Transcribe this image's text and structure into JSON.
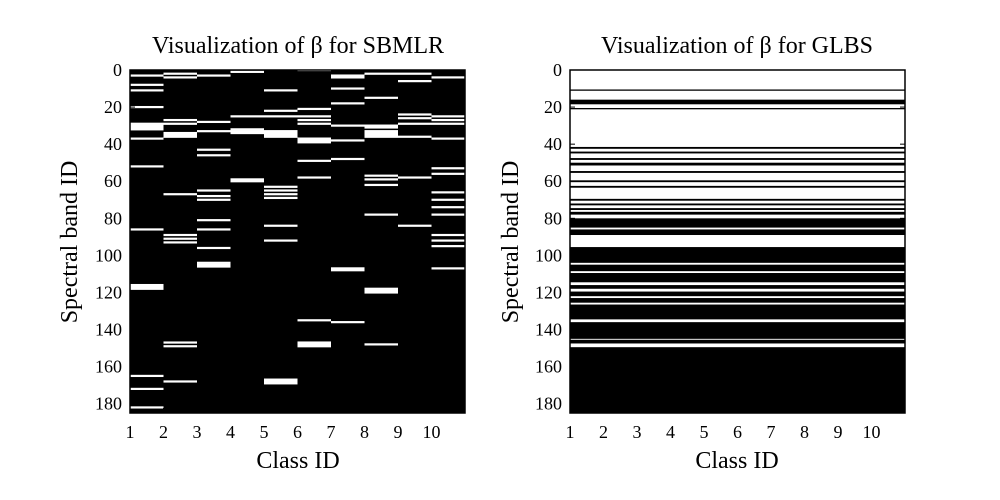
{
  "chart_data": [
    {
      "type": "heatmap",
      "title": "Visualization of β for SBMLR",
      "xlabel": "Class ID",
      "ylabel": "Spectral band ID",
      "x_ticks": [
        "1",
        "2",
        "3",
        "4",
        "5",
        "6",
        "7",
        "8",
        "9",
        "10"
      ],
      "y_ticks": [
        "0",
        "20",
        "40",
        "60",
        "80",
        "100",
        "120",
        "140",
        "160",
        "180"
      ],
      "xlim": [
        1,
        11
      ],
      "ylim": [
        185,
        0
      ],
      "background": "#000000",
      "mark_color": "#ffffff",
      "note_values": "white band = selected (non-zero beta)",
      "columns": [
        {
          "class": 1,
          "selected_bands": [
            3,
            8,
            11,
            20,
            29,
            30,
            31,
            32,
            37,
            52,
            86,
            116,
            117,
            118,
            165,
            172,
            182
          ]
        },
        {
          "class": 2,
          "selected_bands": [
            2,
            4,
            27,
            29,
            34,
            35,
            36,
            67,
            89,
            91,
            93,
            147,
            149,
            168
          ]
        },
        {
          "class": 3,
          "selected_bands": [
            3,
            28,
            33,
            43,
            46,
            65,
            68,
            70,
            81,
            86,
            96,
            104,
            105,
            106
          ]
        },
        {
          "class": 4,
          "selected_bands": [
            1,
            25,
            32,
            33,
            34,
            59,
            60
          ]
        },
        {
          "class": 5,
          "selected_bands": [
            11,
            22,
            25,
            33,
            34,
            35,
            36,
            63,
            65,
            67,
            69,
            84,
            92,
            167,
            168,
            169
          ]
        },
        {
          "class": 6,
          "selected_bands": [
            0,
            21,
            25,
            27,
            29,
            37,
            38,
            39,
            49,
            58,
            135,
            147,
            148,
            149
          ]
        },
        {
          "class": 7,
          "selected_bands": [
            3,
            4,
            10,
            18,
            30,
            38,
            48,
            107,
            108,
            136
          ]
        },
        {
          "class": 8,
          "selected_bands": [
            2,
            15,
            30,
            31,
            33,
            34,
            35,
            36,
            57,
            59,
            62,
            78,
            118,
            119,
            120,
            148
          ]
        },
        {
          "class": 9,
          "selected_bands": [
            2,
            6,
            24,
            26,
            29,
            36,
            58,
            84
          ]
        },
        {
          "class": 10,
          "selected_bands": [
            4,
            25,
            27,
            29,
            37,
            53,
            56,
            66,
            70,
            74,
            78,
            89,
            92,
            95,
            107
          ]
        }
      ]
    },
    {
      "type": "heatmap",
      "title": "Visualization of β for GLBS",
      "xlabel": "Class ID",
      "ylabel": "Spectral band ID",
      "x_ticks": [
        "1",
        "2",
        "3",
        "4",
        "5",
        "6",
        "7",
        "8",
        "9",
        "10"
      ],
      "y_ticks": [
        "0",
        "20",
        "40",
        "60",
        "80",
        "100",
        "120",
        "140",
        "160",
        "180"
      ],
      "xlim": [
        1,
        11
      ],
      "ylim": [
        185,
        0
      ],
      "background": "#ffffff",
      "mark_color": "#000000",
      "note_values": "black band = not selected (zero beta), shared across all classes",
      "zero_band_ranges": [
        [
          10.5,
          11.2
        ],
        [
          16,
          18.5
        ],
        [
          20.5,
          21.2
        ],
        [
          41.5,
          42.5
        ],
        [
          44,
          45
        ],
        [
          47.5,
          48.5
        ],
        [
          50,
          51.5
        ],
        [
          54.5,
          55.5
        ],
        [
          59.5,
          60.5
        ],
        [
          62.5,
          63.5
        ],
        [
          69.5,
          70.5
        ],
        [
          72,
          73
        ],
        [
          74.5,
          75.5
        ],
        [
          76.5,
          78
        ],
        [
          80,
          85
        ],
        [
          86,
          89
        ],
        [
          95.5,
          104
        ],
        [
          105,
          108.5
        ],
        [
          109.5,
          114.5
        ],
        [
          116,
          118
        ],
        [
          119.5,
          122
        ],
        [
          123,
          125.5
        ],
        [
          126.5,
          134.5
        ],
        [
          136,
          145
        ],
        [
          145.5,
          147.5
        ],
        [
          149.5,
          185
        ]
      ]
    }
  ]
}
